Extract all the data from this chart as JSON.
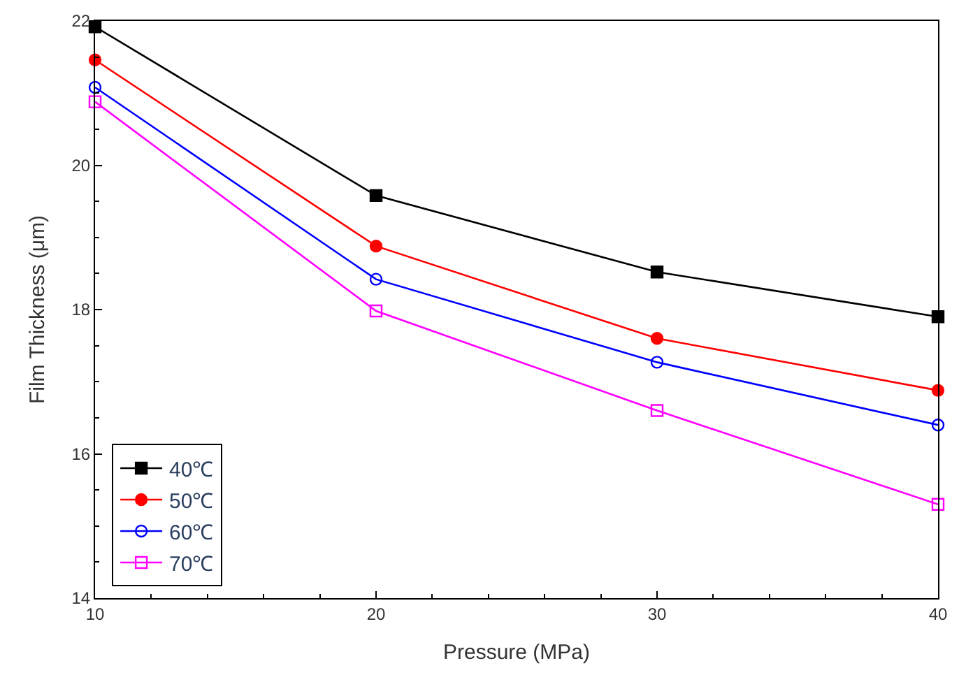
{
  "chart_data": {
    "type": "line",
    "xlabel": "Pressure (MPa)",
    "ylabel": "Film Thickness (μm)",
    "x": [
      10,
      20,
      30,
      40
    ],
    "series": [
      {
        "name": "40℃",
        "color": "#000000",
        "marker": "square",
        "values": [
          21.92,
          19.58,
          18.52,
          17.9
        ]
      },
      {
        "name": "50℃",
        "color": "#ff0000",
        "marker": "circle",
        "values": [
          21.46,
          18.88,
          17.6,
          16.88
        ]
      },
      {
        "name": "60℃",
        "color": "#0000ff",
        "marker": "circle-open",
        "values": [
          21.08,
          18.42,
          17.27,
          16.4
        ]
      },
      {
        "name": "70℃",
        "color": "#ff00ff",
        "marker": "square-open",
        "values": [
          20.88,
          17.98,
          16.6,
          15.3
        ]
      }
    ],
    "xlim": [
      10,
      40
    ],
    "xticks": [
      10,
      20,
      30,
      40
    ],
    "ylim": [
      14,
      22
    ],
    "yticks": [
      14,
      16,
      18,
      20,
      22
    ],
    "legend": "bottom left",
    "line_style": "solid"
  }
}
